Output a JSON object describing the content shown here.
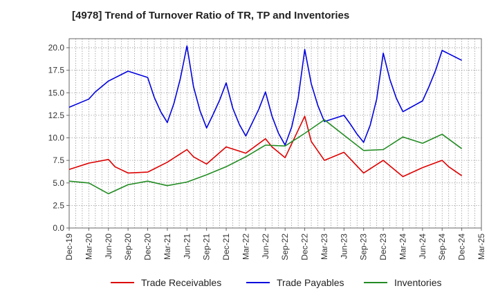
{
  "chart_data": {
    "type": "line",
    "title": "[4978]  Trend of Turnover Ratio of TR, TP and Inventories",
    "xlabel": "",
    "ylabel": "",
    "ylim": [
      0,
      21
    ],
    "yticks": [
      0.0,
      2.5,
      5.0,
      7.5,
      10.0,
      12.5,
      15.0,
      17.5,
      20.0
    ],
    "ytick_labels": [
      "0.0",
      "2.5",
      "5.0",
      "7.5",
      "10.0",
      "12.5",
      "15.0",
      "17.5",
      "20.0"
    ],
    "x_tick_labels": [
      "Dec-19",
      "Mar-20",
      "Jun-20",
      "Sep-20",
      "Dec-20",
      "Mar-21",
      "Jun-21",
      "Sep-21",
      "Dec-21",
      "Mar-22",
      "Jun-22",
      "Sep-22",
      "Dec-22",
      "Mar-23",
      "Jun-23",
      "Sep-23",
      "Dec-23",
      "Mar-24",
      "Jun-24",
      "Sep-24",
      "Dec-24",
      "Mar-25"
    ],
    "grid": true,
    "legend_position": "bottom",
    "series": [
      {
        "name": "Trade Receivables",
        "color": "#dd0000",
        "x": [
          "Dec-19",
          "Mar-20",
          "Jun-20",
          "Jul-20",
          "Sep-20",
          "Dec-20",
          "Mar-21",
          "Jun-21",
          "Jul-21",
          "Sep-21",
          "Dec-21",
          "Mar-22",
          "Jun-22",
          "Jul-22",
          "Sep-22",
          "Dec-22",
          "Jan-23",
          "Mar-23",
          "Jun-23",
          "Sep-23",
          "Dec-23",
          "Mar-24",
          "Jun-24",
          "Sep-24",
          "Oct-24",
          "Dec-24"
        ],
        "values": [
          6.5,
          7.2,
          7.6,
          6.8,
          6.1,
          6.2,
          7.3,
          8.7,
          7.9,
          7.1,
          9.0,
          8.3,
          9.9,
          9.0,
          7.8,
          12.4,
          9.6,
          7.5,
          8.4,
          6.1,
          7.5,
          5.7,
          6.7,
          7.5,
          6.8,
          5.8
        ]
      },
      {
        "name": "Trade Payables",
        "color": "#0000dd",
        "x": [
          "Dec-19",
          "Mar-20",
          "Apr-20",
          "Jun-20",
          "Sep-20",
          "Dec-20",
          "Jan-21",
          "Feb-21",
          "Mar-21",
          "Apr-21",
          "May-21",
          "Jun-21",
          "Jul-21",
          "Aug-21",
          "Sep-21",
          "Oct-21",
          "Nov-21",
          "Dec-21",
          "Jan-22",
          "Feb-22",
          "Mar-22",
          "Apr-22",
          "May-22",
          "Jun-22",
          "Jul-22",
          "Aug-22",
          "Sep-22",
          "Oct-22",
          "Nov-22",
          "Dec-22",
          "Jan-23",
          "Feb-23",
          "Mar-23",
          "Jun-23",
          "Jul-23",
          "Aug-23",
          "Sep-23",
          "Oct-23",
          "Nov-23",
          "Dec-23",
          "Jan-24",
          "Feb-24",
          "Mar-24",
          "Jun-24",
          "Jul-24",
          "Aug-24",
          "Sep-24",
          "Dec-24"
        ],
        "values": [
          13.4,
          14.3,
          15.1,
          16.3,
          17.4,
          16.7,
          14.5,
          12.9,
          11.7,
          13.8,
          16.6,
          20.2,
          15.7,
          13.0,
          11.1,
          12.6,
          14.2,
          16.1,
          13.3,
          11.5,
          10.2,
          11.7,
          13.2,
          15.1,
          12.4,
          10.5,
          9.2,
          11.2,
          14.4,
          19.8,
          16.0,
          13.6,
          11.8,
          12.5,
          11.5,
          10.4,
          9.5,
          11.4,
          14.3,
          19.4,
          16.5,
          14.4,
          12.9,
          14.1,
          15.7,
          17.5,
          19.7,
          18.6
        ]
      },
      {
        "name": "Inventories",
        "color": "#228b22",
        "x": [
          "Dec-19",
          "Mar-20",
          "Jun-20",
          "Sep-20",
          "Dec-20",
          "Mar-21",
          "Jun-21",
          "Sep-21",
          "Dec-21",
          "Mar-22",
          "Jun-22",
          "Sep-22",
          "Dec-22",
          "Mar-23",
          "Jun-23",
          "Sep-23",
          "Dec-23",
          "Mar-24",
          "Jun-24",
          "Sep-24",
          "Dec-24"
        ],
        "values": [
          5.2,
          5.0,
          3.8,
          4.8,
          5.2,
          4.7,
          5.1,
          5.9,
          6.8,
          7.9,
          9.2,
          9.1,
          10.5,
          12.0,
          10.3,
          8.6,
          8.7,
          10.1,
          9.4,
          10.4,
          8.8
        ]
      }
    ]
  }
}
